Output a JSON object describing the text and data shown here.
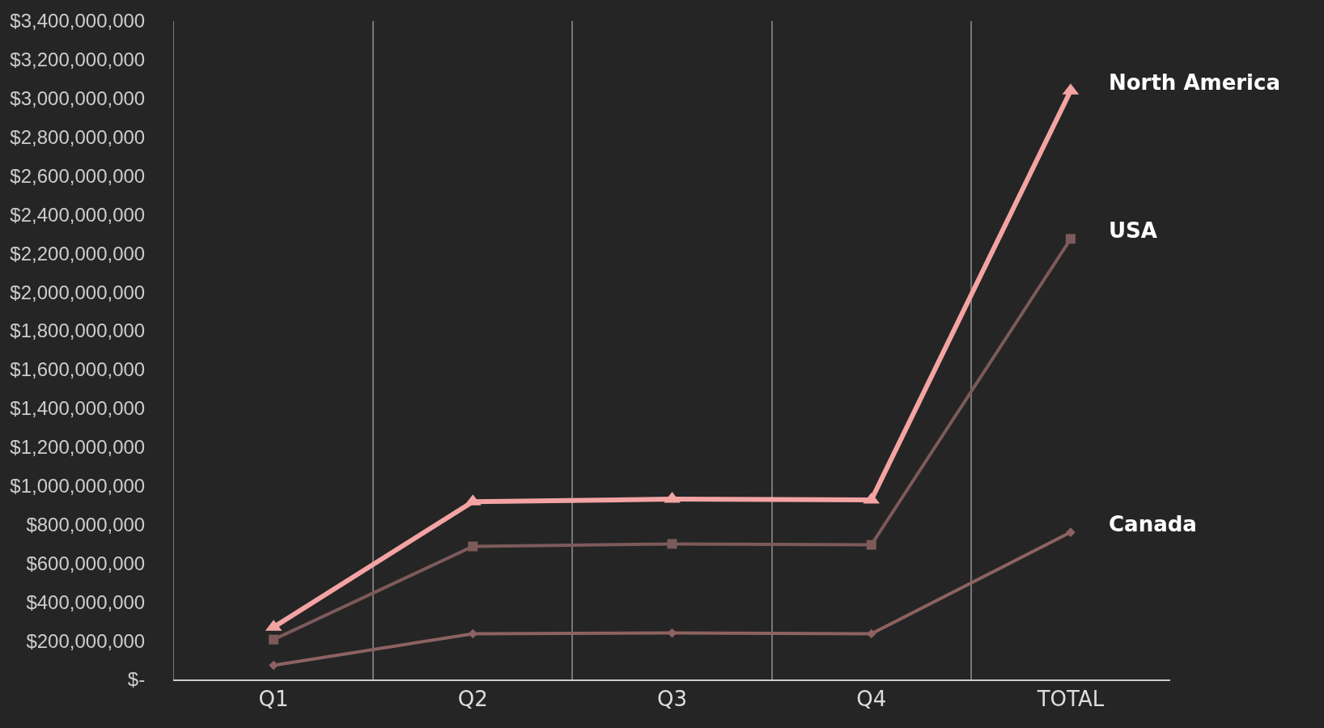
{
  "chart_data": {
    "type": "line",
    "categories": [
      "Q1",
      "Q2",
      "Q3",
      "Q4",
      "TOTAL"
    ],
    "series": [
      {
        "name": "North America",
        "color": "#f4a3a3",
        "marker": "triangle",
        "values": [
          270000000,
          918000000,
          931000000,
          927000000,
          3040000000
        ]
      },
      {
        "name": "USA",
        "color": "#7d5a5a",
        "marker": "square",
        "values": [
          206000000,
          687000000,
          700000000,
          695000000,
          2275000000
        ]
      },
      {
        "name": "Canada",
        "color": "#8e6262",
        "marker": "diamond",
        "values": [
          73000000,
          236000000,
          240000000,
          236000000,
          760000000
        ]
      }
    ],
    "ylim": [
      0,
      3400000000
    ],
    "yticks": [
      {
        "value": 0,
        "label": "$-"
      },
      {
        "value": 200000000,
        "label": "$200,000,000"
      },
      {
        "value": 400000000,
        "label": "$400,000,000"
      },
      {
        "value": 600000000,
        "label": "$600,000,000"
      },
      {
        "value": 800000000,
        "label": "$800,000,000"
      },
      {
        "value": 1000000000,
        "label": "$1,000,000,000"
      },
      {
        "value": 1200000000,
        "label": "$1,200,000,000"
      },
      {
        "value": 1400000000,
        "label": "$1,400,000,000"
      },
      {
        "value": 1600000000,
        "label": "$1,600,000,000"
      },
      {
        "value": 1800000000,
        "label": "$1,800,000,000"
      },
      {
        "value": 2000000000,
        "label": "$2,000,000,000"
      },
      {
        "value": 2200000000,
        "label": "$2,200,000,000"
      },
      {
        "value": 2400000000,
        "label": "$2,400,000,000"
      },
      {
        "value": 2600000000,
        "label": "$2,600,000,000"
      },
      {
        "value": 2800000000,
        "label": "$2,800,000,000"
      },
      {
        "value": 3000000000,
        "label": "$3,000,000,000"
      },
      {
        "value": 3200000000,
        "label": "$3,200,000,000"
      },
      {
        "value": 3400000000,
        "label": "$3,400,000,000"
      }
    ],
    "grid": "x",
    "legend": false
  }
}
